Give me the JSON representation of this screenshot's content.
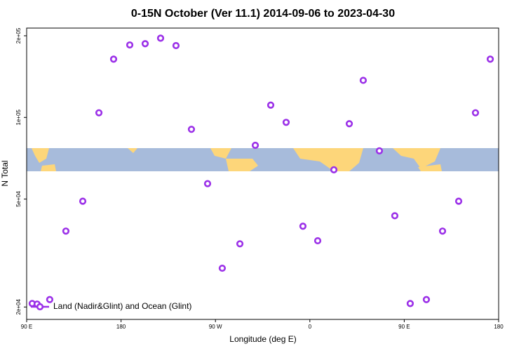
{
  "chart_data": {
    "type": "scatter",
    "title": "0-15N October (Ver 11.1)   2014-09-06 to 2023-04-30",
    "xlabel": "Longitude (deg E)",
    "ylabel": "N Total",
    "xlim": [
      90,
      540
    ],
    "xticks": [
      {
        "value": 90,
        "label": "90 E"
      },
      {
        "value": 180,
        "label": "180"
      },
      {
        "value": 270,
        "label": "90 W"
      },
      {
        "value": 360,
        "label": "0"
      },
      {
        "value": 450,
        "label": "90 E"
      },
      {
        "value": 540,
        "label": "180"
      }
    ],
    "ylim": [
      18000,
      213500
    ],
    "log_y": true,
    "yticks": [
      {
        "value": 20000,
        "label": "2e+04"
      },
      {
        "value": 50000,
        "label": "5e+04"
      },
      {
        "value": 100000,
        "label": "1e+05"
      },
      {
        "value": 200000,
        "label": "2e+05"
      }
    ],
    "legend": "lower left",
    "series": [
      {
        "name": "Land (Nadir&Glint) and Ocean (Glint)",
        "color": "#9b30e8",
        "x": [
          95.3,
          100,
          112,
          127.4,
          143.5,
          158.9,
          172.9,
          188.3,
          203,
          217.7,
          232.4,
          247.1,
          262.5,
          276.5,
          293.3,
          308,
          322.7,
          337.4,
          353.4,
          367.5,
          382.9,
          397.6,
          410.9,
          426.3,
          441,
          455.7,
          471.1,
          486.5,
          501.9,
          517.9,
          532
        ],
        "values": [
          20600,
          20500,
          21300,
          38100,
          49100,
          104000,
          164000,
          185000,
          187000,
          196000,
          184000,
          90400,
          57000,
          27800,
          34200,
          78900,
          111000,
          95900,
          39700,
          35100,
          64100,
          94800,
          137000,
          75300,
          43400,
          20600,
          21300,
          38100,
          49100,
          104000,
          164000
        ]
      }
    ]
  }
}
